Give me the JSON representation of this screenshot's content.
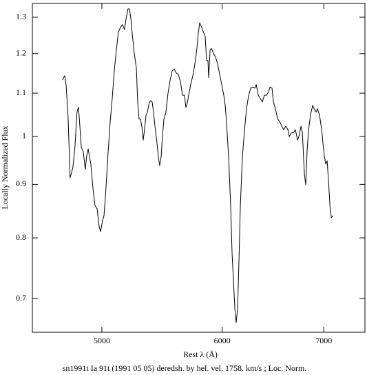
{
  "chart_data": {
    "type": "line",
    "xlabel": "Rest λ (Å)",
    "ylabel": "Locally Normalized Flux",
    "caption": "sn1991t Ia 91t (1991 05 05) deredsh. by hel. vel.  1758. km/s ;  Loc. Norm.",
    "xscale": "log",
    "yscale": "log",
    "grid": false,
    "xlim": [
      4500,
      7450
    ],
    "ylim": [
      0.65,
      1.34
    ],
    "xticks": [
      5000,
      6000,
      7000
    ],
    "yticks": [
      0.7,
      0.8,
      0.9,
      1,
      1.1,
      1.2,
      1.3
    ],
    "x": [
      4711,
      4726,
      4736,
      4750,
      4765,
      4785,
      4800,
      4815,
      4826,
      4836,
      4846,
      4861,
      4876,
      4886,
      4897,
      4917,
      4933,
      4948,
      4964,
      4979,
      4990,
      5005,
      5016,
      5031,
      5047,
      5063,
      5079,
      5095,
      5111,
      5127,
      5143,
      5159,
      5175,
      5186,
      5202,
      5213,
      5224,
      5235,
      5252,
      5268,
      5279,
      5290,
      5301,
      5312,
      5323,
      5334,
      5346,
      5357,
      5374,
      5385,
      5396,
      5407,
      5419,
      5436,
      5447,
      5458,
      5470,
      5481,
      5493,
      5510,
      5527,
      5545,
      5562,
      5579,
      5597,
      5614,
      5632,
      5650,
      5667,
      5679,
      5691,
      5703,
      5721,
      5739,
      5757,
      5775,
      5787,
      5799,
      5817,
      5836,
      5848,
      5860,
      5872,
      5879,
      5891,
      5903,
      5922,
      5940,
      5959,
      5978,
      5996,
      6015,
      6028,
      6040,
      6059,
      6078,
      6091,
      6104,
      6117,
      6129,
      6142,
      6155,
      6168,
      6187,
      6207,
      6226,
      6246,
      6265,
      6285,
      6305,
      6318,
      6338,
      6358,
      6377,
      6397,
      6418,
      6438,
      6451,
      6471,
      6485,
      6505,
      6526,
      6546,
      6567,
      6587,
      6608,
      6629,
      6643,
      6663,
      6684,
      6705,
      6726,
      6740,
      6762,
      6776,
      6797,
      6811,
      6825,
      6840,
      6861,
      6883,
      6897,
      6919,
      6933,
      6955,
      6977,
      6991,
      7006,
      7021,
      7035,
      7050,
      7065,
      7080,
      7095
    ],
    "series": [
      {
        "color": "#000000",
        "values": [
          1.132,
          1.143,
          1.121,
          1.047,
          0.913,
          0.934,
          0.977,
          1.055,
          1.067,
          1.023,
          0.977,
          0.967,
          0.93,
          0.958,
          0.973,
          0.941,
          0.892,
          0.859,
          0.853,
          0.821,
          0.811,
          0.831,
          0.84,
          0.892,
          0.963,
          1.031,
          1.087,
          1.155,
          1.209,
          1.259,
          1.271,
          1.279,
          1.265,
          1.294,
          1.324,
          1.324,
          1.298,
          1.255,
          1.2,
          1.164,
          1.079,
          1.039,
          1.039,
          1.023,
          0.992,
          1.015,
          1.047,
          1.055,
          1.079,
          1.082,
          1.079,
          1.055,
          1.023,
          0.985,
          0.956,
          0.938,
          0.956,
          1.0,
          1.039,
          1.055,
          1.099,
          1.132,
          1.155,
          1.16,
          1.15,
          1.146,
          1.129,
          1.095,
          1.095,
          1.066,
          1.076,
          1.095,
          1.121,
          1.143,
          1.173,
          1.214,
          1.255,
          1.284,
          1.271,
          1.255,
          1.246,
          1.182,
          1.182,
          1.138,
          1.209,
          1.214,
          1.2,
          1.191,
          1.173,
          1.146,
          1.121,
          1.095,
          1.071,
          1.031,
          0.956,
          0.859,
          0.773,
          0.727,
          0.684,
          0.664,
          0.684,
          0.761,
          0.859,
          0.956,
          1.015,
          1.063,
          1.095,
          1.112,
          1.115,
          1.112,
          1.121,
          1.095,
          1.087,
          1.079,
          1.095,
          1.095,
          1.104,
          1.115,
          1.112,
          1.079,
          1.063,
          1.039,
          1.034,
          1.023,
          1.015,
          1.023,
          1.015,
          1.0,
          1.008,
          1.008,
          1.015,
          0.992,
          1.0,
          1.023,
          1.008,
          0.92,
          0.899,
          0.97,
          1.015,
          1.05,
          1.071,
          1.063,
          1.055,
          1.063,
          1.047,
          1.015,
          0.985,
          0.956,
          0.941,
          0.948,
          0.906,
          0.859,
          0.836,
          0.84
        ]
      }
    ]
  }
}
